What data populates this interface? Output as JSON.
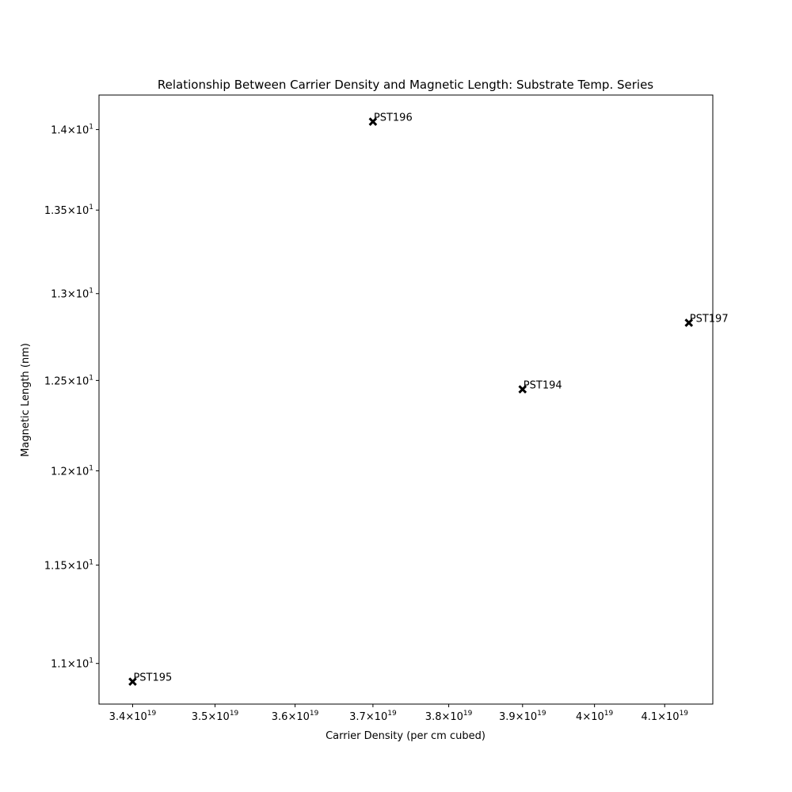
{
  "chart_data": {
    "type": "scatter",
    "title": "Relationship Between Carrier Density and Magnetic Length: Substrate Temp. Series",
    "xlabel": "Carrier Density (per cm cubed)",
    "ylabel": "Magnetic Length (nm)",
    "x_scale": "log",
    "y_scale": "log",
    "xlim": [
      3.36e+19,
      4.17e+19
    ],
    "ylim": [
      10.8,
      14.22
    ],
    "grid": false,
    "legend": "none",
    "marker": "x",
    "marker_color": "#000000",
    "points": [
      {
        "label": "PST196",
        "x": 3.7e+19,
        "y": 14.05
      },
      {
        "label": "PST197",
        "x": 4.135e+19,
        "y": 12.83
      },
      {
        "label": "PST194",
        "x": 3.9e+19,
        "y": 12.45
      },
      {
        "label": "PST195",
        "x": 3.4e+19,
        "y": 10.91
      }
    ],
    "x_ticks": [
      {
        "value": 3.4e+19,
        "mantissa": "3.4",
        "base": "10",
        "exp": "19"
      },
      {
        "value": 3.5e+19,
        "mantissa": "3.5",
        "base": "10",
        "exp": "19"
      },
      {
        "value": 3.6e+19,
        "mantissa": "3.6",
        "base": "10",
        "exp": "19"
      },
      {
        "value": 3.7e+19,
        "mantissa": "3.7",
        "base": "10",
        "exp": "19"
      },
      {
        "value": 3.8e+19,
        "mantissa": "3.8",
        "base": "10",
        "exp": "19"
      },
      {
        "value": 3.9e+19,
        "mantissa": "3.9",
        "base": "10",
        "exp": "19"
      },
      {
        "value": 4e+19,
        "mantissa": "4",
        "base": "10",
        "exp": "19"
      },
      {
        "value": 4.1e+19,
        "mantissa": "4.1",
        "base": "10",
        "exp": "19"
      }
    ],
    "y_ticks": [
      {
        "value": 11.0,
        "mantissa": "1.1",
        "base": "10",
        "exp": "1"
      },
      {
        "value": 11.5,
        "mantissa": "1.15",
        "base": "10",
        "exp": "1"
      },
      {
        "value": 12.0,
        "mantissa": "1.2",
        "base": "10",
        "exp": "1"
      },
      {
        "value": 12.5,
        "mantissa": "1.25",
        "base": "10",
        "exp": "1"
      },
      {
        "value": 13.0,
        "mantissa": "1.3",
        "base": "10",
        "exp": "1"
      },
      {
        "value": 13.5,
        "mantissa": "1.35",
        "base": "10",
        "exp": "1"
      },
      {
        "value": 14.0,
        "mantissa": "1.4",
        "base": "10",
        "exp": "1"
      }
    ]
  }
}
